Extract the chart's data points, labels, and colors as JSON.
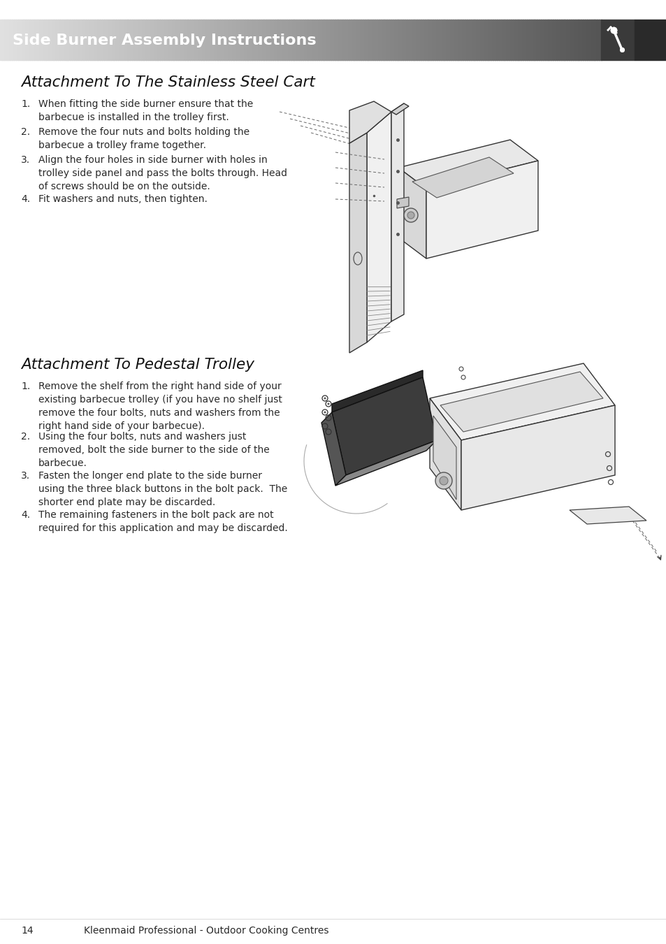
{
  "page_bg": "#ffffff",
  "header_text": "Side Burner Assembly Instructions",
  "header_text_color": "#ffffff",
  "section1_title": "Attachment To The Stainless Steel Cart",
  "section1_steps": [
    [
      "1.",
      "When fitting the side burner ensure that the\nbarbecue is installed in the trolley first."
    ],
    [
      "2.",
      "Remove the four nuts and bolts holding the\nbarbecue a trolley frame together."
    ],
    [
      "3.",
      "Align the four holes in side burner with holes in\ntrolley side panel and pass the bolts through. Head\nof screws should be on the outside."
    ],
    [
      "4.",
      "Fit washers and nuts, then tighten."
    ]
  ],
  "section2_title": "Attachment To Pedestal Trolley",
  "section2_steps": [
    [
      "1.",
      "Remove the shelf from the right hand side of your\nexisting barbecue trolley (if you have no shelf just\nremove the four bolts, nuts and washers from the\nright hand side of your barbecue)."
    ],
    [
      "2.",
      "Using the four bolts, nuts and washers just\nremoved, bolt the side burner to the side of the\nbarbecue."
    ],
    [
      "3.",
      "Fasten the longer end plate to the side burner\nusing the three black buttons in the bolt pack.  The\nshorter end plate may be discarded."
    ],
    [
      "4.",
      "The remaining fasteners in the bolt pack are not\nrequired for this application and may be discarded."
    ]
  ],
  "footer_page": "14",
  "footer_brand": "Kleenmaid Professional - Outdoor Cooking Centres",
  "text_color": "#2a2a2a",
  "title_color": "#111111"
}
